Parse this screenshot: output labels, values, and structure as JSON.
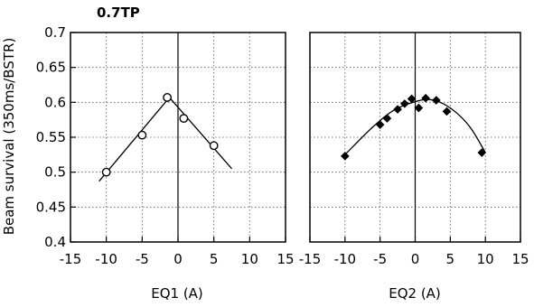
{
  "chart_data": [
    {
      "type": "scatter",
      "title": "0.7TP",
      "xlabel": "EQ1 (A)",
      "ylabel": "Beam survival (350ms/BSTR)",
      "xlim": [
        -15,
        15
      ],
      "ylim": [
        0.4,
        0.7
      ],
      "x_ticks": [
        "-15",
        "-10",
        "-5",
        "0",
        "5",
        "10",
        "15"
      ],
      "y_ticks": [
        "0.4",
        "0.45",
        "0.5",
        "0.55",
        "0.6",
        "0.65",
        "0.7"
      ],
      "grid": true,
      "series": [
        {
          "marker": "open-circle",
          "points": [
            {
              "x": -10,
              "y": 0.5
            },
            {
              "x": -5,
              "y": 0.553
            },
            {
              "x": -1.5,
              "y": 0.607
            },
            {
              "x": 0.8,
              "y": 0.577
            },
            {
              "x": 5,
              "y": 0.538
            }
          ]
        }
      ],
      "fit": [
        {
          "x": -11,
          "y": 0.487
        },
        {
          "x": -1.2,
          "y": 0.607
        },
        {
          "x": 7.5,
          "y": 0.505
        }
      ]
    },
    {
      "type": "scatter",
      "xlabel": "EQ2 (A)",
      "xlim": [
        -15,
        15
      ],
      "ylim": [
        0.4,
        0.7
      ],
      "x_ticks": [
        "-15",
        "-10",
        "-5",
        "0",
        "5",
        "10",
        "15"
      ],
      "grid": true,
      "series": [
        {
          "marker": "filled-diamond",
          "points": [
            {
              "x": -10,
              "y": 0.523
            },
            {
              "x": -5,
              "y": 0.568
            },
            {
              "x": -4,
              "y": 0.577
            },
            {
              "x": -2.5,
              "y": 0.59
            },
            {
              "x": -1.5,
              "y": 0.598
            },
            {
              "x": -0.5,
              "y": 0.605
            },
            {
              "x": 0.5,
              "y": 0.592
            },
            {
              "x": 1.5,
              "y": 0.606
            },
            {
              "x": 3,
              "y": 0.603
            },
            {
              "x": 4.5,
              "y": 0.587
            },
            {
              "x": 9.5,
              "y": 0.528
            }
          ]
        }
      ],
      "fit": [
        {
          "x": -10,
          "y": 0.525
        },
        {
          "x": -6,
          "y": 0.565
        },
        {
          "x": -3,
          "y": 0.589
        },
        {
          "x": 0,
          "y": 0.601
        },
        {
          "x": 2,
          "y": 0.604
        },
        {
          "x": 4,
          "y": 0.598
        },
        {
          "x": 6,
          "y": 0.584
        },
        {
          "x": 8,
          "y": 0.562
        },
        {
          "x": 10,
          "y": 0.528
        }
      ]
    }
  ]
}
